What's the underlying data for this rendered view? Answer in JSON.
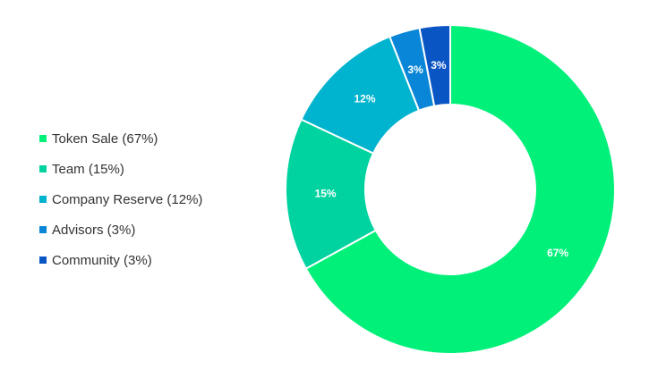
{
  "chart_data": {
    "type": "pie",
    "variant": "donut",
    "title": "",
    "legend_position": "left",
    "categories": [
      "Token Sale",
      "Team",
      "Company Reserve",
      "Advisors",
      "Community"
    ],
    "values": [
      67,
      15,
      12,
      3,
      3
    ],
    "unit": "%",
    "legend_labels": [
      "Token Sale (67%)",
      "Team (15%)",
      "Company Reserve (12%)",
      "Advisors (3%)",
      "Community (3%)"
    ],
    "data_labels": [
      "67%",
      "15%",
      "12%",
      "3%",
      "3%"
    ],
    "colors": [
      "#00f07a",
      "#00d3a0",
      "#00b3cf",
      "#0a86d8",
      "#0a55c4"
    ],
    "start_angle_deg": 0,
    "direction": "clockwise"
  }
}
